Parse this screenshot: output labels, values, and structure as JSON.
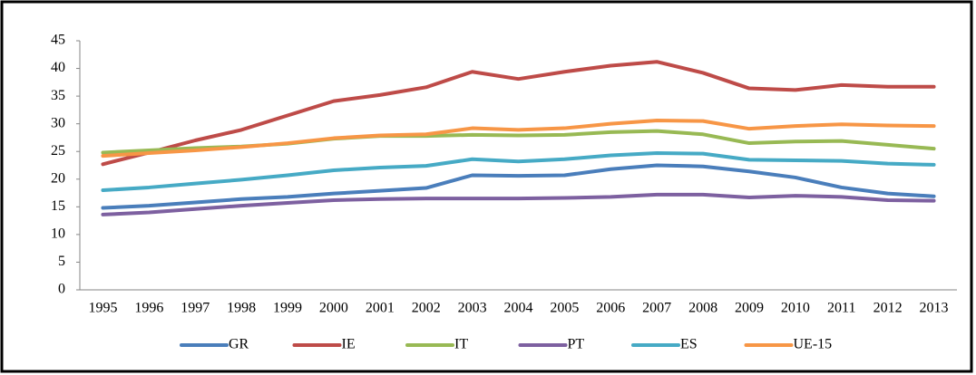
{
  "chart_data": {
    "type": "line",
    "categories": [
      "1995",
      "1996",
      "1997",
      "1998",
      "1999",
      "2000",
      "2001",
      "2002",
      "2003",
      "2004",
      "2005",
      "2006",
      "2007",
      "2008",
      "2009",
      "2010",
      "2011",
      "2012",
      "2013"
    ],
    "series": [
      {
        "name": "GR",
        "color": "#4a7ebb",
        "values": [
          14.8,
          15.2,
          15.8,
          16.4,
          16.8,
          17.4,
          17.9,
          18.4,
          20.7,
          20.6,
          20.7,
          21.8,
          22.5,
          22.3,
          21.4,
          20.3,
          18.5,
          17.4,
          16.9
        ]
      },
      {
        "name": "IE",
        "color": "#be4b48",
        "values": [
          22.7,
          24.8,
          27.0,
          28.9,
          31.5,
          34.1,
          35.2,
          36.6,
          39.4,
          38.1,
          39.4,
          40.5,
          41.2,
          39.2,
          36.4,
          36.1,
          37.0,
          36.7,
          36.7
        ]
      },
      {
        "name": "IT",
        "color": "#98b954",
        "values": [
          24.8,
          25.2,
          25.6,
          25.9,
          26.4,
          27.3,
          27.8,
          27.8,
          28.0,
          27.9,
          28.0,
          28.5,
          28.7,
          28.1,
          26.5,
          26.8,
          26.9,
          26.2,
          25.5
        ]
      },
      {
        "name": "PT",
        "color": "#7d60a0",
        "values": [
          13.6,
          14.0,
          14.6,
          15.2,
          15.7,
          16.2,
          16.4,
          16.5,
          16.5,
          16.5,
          16.6,
          16.8,
          17.2,
          17.2,
          16.7,
          17.0,
          16.8,
          16.2,
          16.1
        ]
      },
      {
        "name": "ES",
        "color": "#46aac5",
        "values": [
          18.0,
          18.5,
          19.2,
          19.9,
          20.7,
          21.6,
          22.1,
          22.4,
          23.6,
          23.2,
          23.6,
          24.3,
          24.7,
          24.6,
          23.5,
          23.4,
          23.3,
          22.8,
          22.6
        ]
      },
      {
        "name": "UE-15",
        "color": "#f79646",
        "values": [
          24.2,
          24.7,
          25.2,
          25.8,
          26.5,
          27.4,
          27.9,
          28.1,
          29.2,
          28.9,
          29.2,
          30.0,
          30.6,
          30.5,
          29.1,
          29.6,
          29.9,
          29.7,
          29.6
        ]
      }
    ],
    "ylim": [
      0,
      45
    ],
    "yticks": [
      0,
      5,
      10,
      15,
      20,
      25,
      30,
      35,
      40,
      45
    ],
    "grid": false,
    "legend": "bottom"
  }
}
